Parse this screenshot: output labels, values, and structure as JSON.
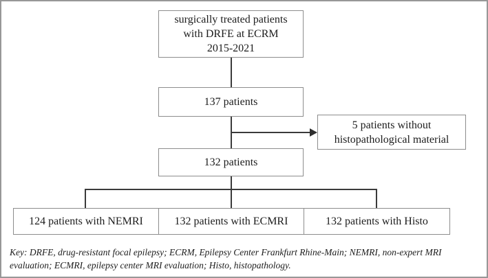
{
  "flowchart": {
    "top_box": {
      "lines": [
        "surgically treated patients",
        "with DRFE at ECRM",
        "2015-2021"
      ]
    },
    "box_137": {
      "label": "137 patients"
    },
    "excluded_box": {
      "lines": [
        "5 patients without",
        "histopathological material"
      ]
    },
    "box_132": {
      "label": "132 patients"
    },
    "bottom_boxes": [
      {
        "label": "124 patients with NEMRI"
      },
      {
        "label": "132 patients with ECMRI"
      },
      {
        "label": "132 patients with Histo"
      }
    ]
  },
  "key": {
    "lines": [
      "Key: DRFE, drug-resistant focal epilepsy; ECRM, Epilepsy Center Frankfurt Rhine-Main; NEMRI, non-expert MRI evaluation;",
      "ECMRI, epilepsy center MRI evaluation; Histo, histopathology."
    ]
  },
  "colors": {
    "background": "#ffffff",
    "box_border": "#8c8c8c",
    "connector_line": "#3a3a3a",
    "text": "#1c1c1c",
    "frame_border": "#979797"
  }
}
